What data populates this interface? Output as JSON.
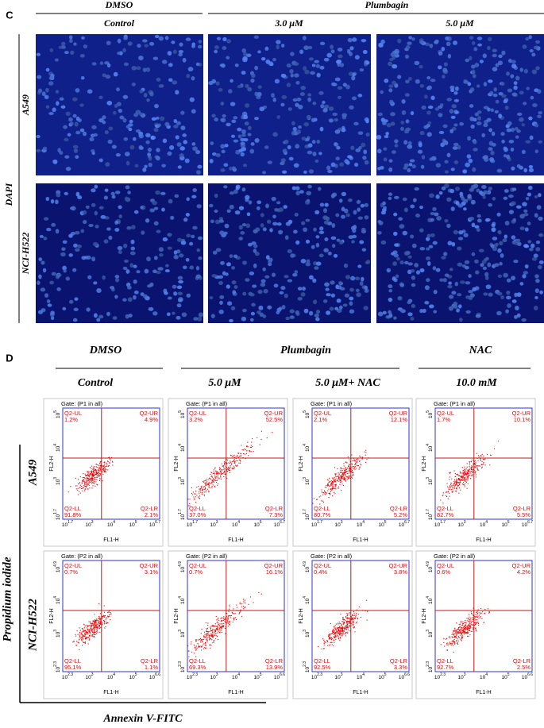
{
  "panel_c": {
    "label": "C",
    "group_headers": [
      "DMSO",
      "Plumbagin"
    ],
    "columns": [
      "Control",
      "3.0 μM",
      "5.0 μM"
    ],
    "stain": "DAPI",
    "rows": [
      "A549",
      "NCI-H522"
    ]
  },
  "panel_d": {
    "label": "D",
    "group_headers": [
      "DMSO",
      "Plumbagin",
      "NAC"
    ],
    "columns": [
      "Control",
      "5.0 μM",
      "5.0 μM+ NAC",
      "10.0 mM"
    ],
    "y_axis_title": "Propidium iodide",
    "x_axis_title": "Annexin V-FITC",
    "tick_base": "10",
    "y_label": "FL2-H",
    "x_label": "FL1-H",
    "rows": [
      {
        "name": "A549",
        "gate": "Gate: (P1 in all)",
        "yticks": [
          "1.7",
          "3",
          "4",
          "5"
        ],
        "xticks": [
          "1.7",
          "3",
          "4",
          "5",
          "6.7"
        ],
        "plots": [
          {
            "quadrants": [
              {
                "name": "Q2-UL",
                "value": "1.2%"
              },
              {
                "name": "Q2-UR",
                "value": "4.9%"
              },
              {
                "name": "Q2-LL",
                "value": "91.8%"
              },
              {
                "name": "Q2-LR",
                "value": "2.1%"
              }
            ]
          },
          {
            "quadrants": [
              {
                "name": "Q2-UL",
                "value": "3.2%"
              },
              {
                "name": "Q2-UR",
                "value": "52.5%"
              },
              {
                "name": "Q2-LL",
                "value": "37.0%"
              },
              {
                "name": "Q2-LR",
                "value": "7.3%"
              }
            ]
          },
          {
            "quadrants": [
              {
                "name": "Q2-UL",
                "value": "2.1%"
              },
              {
                "name": "Q2-UR",
                "value": "12.1%"
              },
              {
                "name": "Q2-LL",
                "value": "80.7%"
              },
              {
                "name": "Q2-LR",
                "value": "5.2%"
              }
            ]
          },
          {
            "quadrants": [
              {
                "name": "Q2-UL",
                "value": "1.7%"
              },
              {
                "name": "Q2-UR",
                "value": "10.1%"
              },
              {
                "name": "Q2-LL",
                "value": "82.7%"
              },
              {
                "name": "Q2-LR",
                "value": "5.5%"
              }
            ]
          }
        ]
      },
      {
        "name": "NCI-H522",
        "gate": "Gate: (P2 in all)",
        "yticks": [
          "2.3",
          "3",
          "4",
          "4.9"
        ],
        "xticks": [
          "2.3",
          "3",
          "4",
          "5",
          "6.6"
        ],
        "plots": [
          {
            "quadrants": [
              {
                "name": "Q2-UL",
                "value": "0.7%"
              },
              {
                "name": "Q2-UR",
                "value": "3.1%"
              },
              {
                "name": "Q2-LL",
                "value": "95.1%"
              },
              {
                "name": "Q2-LR",
                "value": "1.1%"
              }
            ]
          },
          {
            "quadrants": [
              {
                "name": "Q2-UL",
                "value": "0.7%"
              },
              {
                "name": "Q2-UR",
                "value": "16.1%"
              },
              {
                "name": "Q2-LL",
                "value": "69.3%"
              },
              {
                "name": "Q2-LR",
                "value": "13.9%"
              }
            ]
          },
          {
            "quadrants": [
              {
                "name": "Q2-UL",
                "value": "0.4%"
              },
              {
                "name": "Q2-UR",
                "value": "3.8%"
              },
              {
                "name": "Q2-LL",
                "value": "92.5%"
              },
              {
                "name": "Q2-LR",
                "value": "3.3%"
              }
            ]
          },
          {
            "quadrants": [
              {
                "name": "Q2-UL",
                "value": "0.6%"
              },
              {
                "name": "Q2-UR",
                "value": "4.2%"
              },
              {
                "name": "Q2-LL",
                "value": "92.7%"
              },
              {
                "name": "Q2-LR",
                "value": "2.5%"
              }
            ]
          }
        ]
      }
    ]
  }
}
